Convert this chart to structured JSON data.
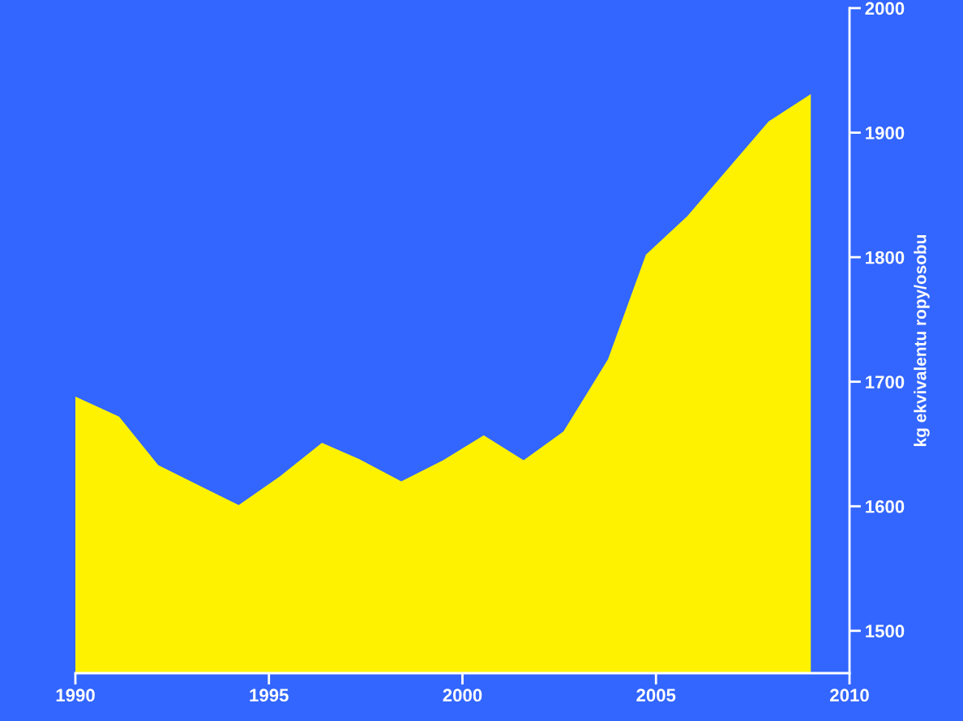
{
  "chart_data": {
    "type": "area",
    "ylabel": "kg ekvivalentu ropy/osobu",
    "x": [
      1990,
      1991.13,
      1992.14,
      1994.22,
      1995.28,
      1996.37,
      1997.33,
      1998.42,
      1999.5,
      2000.55,
      2001.58,
      2002.61,
      2003.76,
      2004.74,
      2005.81,
      2007.91,
      2009.0
    ],
    "series": [
      {
        "color": "#fff200",
        "values": [
          1688,
          1672,
          1633,
          1601,
          1624,
          1651,
          1638,
          1620,
          1637,
          1657,
          1637,
          1660,
          1718,
          1802,
          1833,
          1909,
          1931
        ]
      }
    ],
    "xlim": [
      1990,
      2010
    ],
    "xticks": [
      1990,
      1995,
      2000,
      2005,
      2010
    ],
    "ylim": [
      1466,
      2000
    ],
    "yticks": [
      1500,
      1600,
      1700,
      1800,
      1900,
      2000
    ]
  }
}
